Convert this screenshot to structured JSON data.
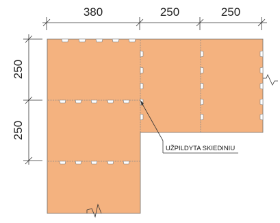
{
  "dimensions": {
    "top": [
      "380",
      "250",
      "250"
    ],
    "left": [
      "250",
      "250"
    ]
  },
  "callout": {
    "text": "UŽPILDYTA SKIEDINIU"
  },
  "colors": {
    "slab_fill": "#f4b27f",
    "slab_edge": "#6f6f6f",
    "line": "#333333",
    "background": "#ffffff"
  }
}
